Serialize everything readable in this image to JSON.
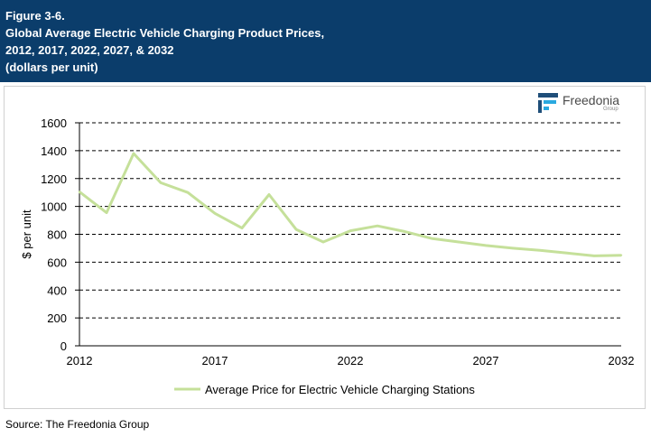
{
  "header": {
    "figure_label": "Figure 3-6.",
    "title_line1": "Global Average Electric Vehicle Charging Product Prices,",
    "title_line2": "2012, 2017, 2022, 2027, & 2032",
    "units": "(dollars per unit)"
  },
  "logo": {
    "name": "Freedonia",
    "sub": "Group",
    "icon": "freedonia-logo-icon"
  },
  "source": "Source: The Freedonia Group",
  "colors": {
    "header_bg": "#0b3d6b",
    "series_line": "#c5e09a",
    "grid": "#000000"
  },
  "chart_data": {
    "type": "line",
    "ylabel": "$ per unit",
    "xlabel": "",
    "ylim": [
      0,
      1600
    ],
    "xlim": [
      2012,
      2032
    ],
    "y_ticks": [
      0,
      200,
      400,
      600,
      800,
      1000,
      1200,
      1400,
      1600
    ],
    "x_ticks": [
      2012,
      2017,
      2022,
      2027,
      2032
    ],
    "grid": "horizontal dashed",
    "legend_position": "bottom",
    "series": [
      {
        "name": "Average Price for Electric Vehicle Charging Stations",
        "x": [
          2012,
          2013,
          2014,
          2015,
          2016,
          2017,
          2018,
          2019,
          2020,
          2021,
          2022,
          2023,
          2024,
          2025,
          2026,
          2027,
          2028,
          2029,
          2030,
          2031,
          2032
        ],
        "values": [
          1105,
          955,
          1380,
          1170,
          1100,
          950,
          845,
          1085,
          835,
          745,
          825,
          860,
          820,
          770,
          745,
          720,
          700,
          685,
          665,
          645,
          650
        ]
      }
    ]
  }
}
